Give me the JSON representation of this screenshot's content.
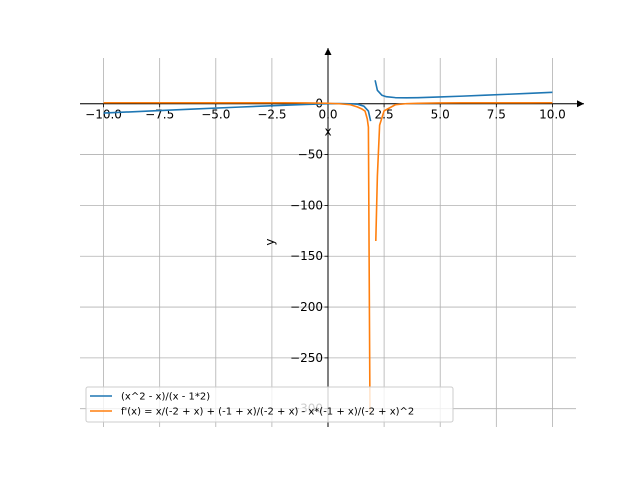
{
  "chart_data": {
    "type": "line",
    "xlabel": "x",
    "ylabel": "y",
    "xlim": [
      -11.05,
      11.05
    ],
    "ylim": [
      -318,
      45
    ],
    "grid": true,
    "legend_position": "bottom-left",
    "x_ticks": [
      -10.0,
      -7.5,
      -5.0,
      -2.5,
      0.0,
      2.5,
      5.0,
      7.5,
      10.0
    ],
    "x_tick_labels": [
      "−10.0",
      "−7.5",
      "−5.0",
      "−2.5",
      "0.0",
      "2.5",
      "5.0",
      "7.5",
      "10.0"
    ],
    "y_ticks": [
      0,
      -50,
      -100,
      -150,
      -200,
      -250,
      -300
    ],
    "y_tick_labels": [
      "0",
      "−50",
      "−100",
      "−150",
      "−200",
      "−250",
      "−300"
    ],
    "series": [
      {
        "name": "(x^2 - x)/(x - 1*2)",
        "color": "#1f77b4",
        "x": [
          -10,
          -8,
          -6,
          -4,
          -2,
          -1,
          0,
          0.5,
          1,
          1.3,
          1.6,
          1.8,
          1.9,
          2.1,
          2.2,
          2.4,
          2.6,
          3,
          3.5,
          4,
          5,
          6,
          7,
          8,
          9,
          10
        ],
        "y": [
          -9.17,
          -7.2,
          -5.25,
          -3.33,
          -1.5,
          -0.67,
          0,
          0.17,
          0,
          -0.39,
          -2.4,
          -7.2,
          -17.1,
          23.1,
          13.2,
          8.4,
          6.93,
          6,
          5.83,
          6,
          6.67,
          7.5,
          8.4,
          9.33,
          10.29,
          11.25
        ]
      },
      {
        "name": "f'(x) = x/(-2 + x) + (-1 + x)/(-2 + x) - x*(-1 + x)/(-2 + x)^2",
        "color": "#ff7f0e",
        "x": [
          -10,
          -5,
          -2,
          -1,
          0,
          0.5,
          1,
          1.3,
          1.5,
          1.65,
          1.75,
          1.8,
          1.87,
          2.13,
          2.2,
          2.3,
          2.5,
          3,
          3.5,
          4,
          5,
          6,
          7,
          8,
          9,
          10
        ],
        "y": [
          0.99,
          0.96,
          0.88,
          0.78,
          0.5,
          0.0,
          -1.0,
          -3.08,
          -5.0,
          -7.16,
          -15.0,
          -23.0,
          -303.0,
          -135.0,
          -71.0,
          -21.0,
          -7.0,
          -1.0,
          0.11,
          0.5,
          0.78,
          0.88,
          0.92,
          0.94,
          0.96,
          0.97
        ]
      }
    ]
  }
}
